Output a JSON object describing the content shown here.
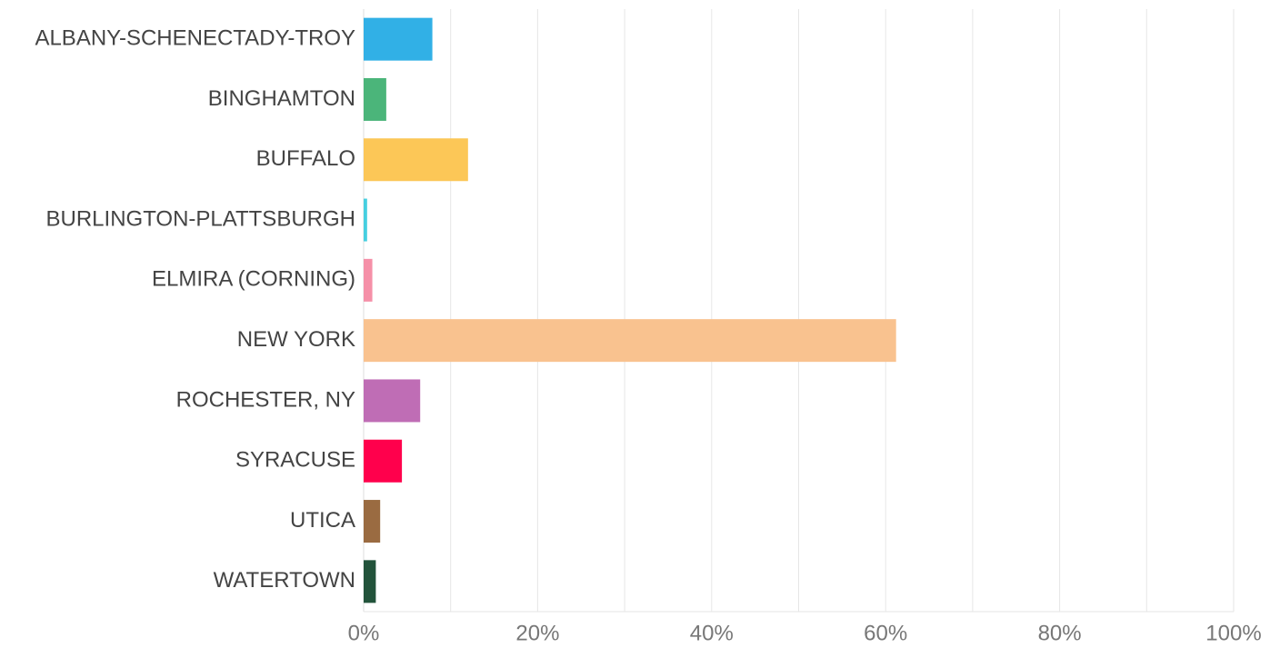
{
  "chart_data": {
    "type": "bar",
    "orientation": "horizontal",
    "categories": [
      "ALBANY-SCHENECTADY-TROY",
      "BINGHAMTON",
      "BUFFALO",
      "BURLINGTON-PLATTSBURGH",
      "ELMIRA (CORNING)",
      "NEW YORK",
      "ROCHESTER, NY",
      "SYRACUSE",
      "UTICA",
      "WATERTOWN"
    ],
    "values": [
      7.9,
      2.6,
      12.0,
      0.4,
      1.0,
      61.2,
      6.5,
      4.4,
      1.9,
      1.4
    ],
    "colors": [
      "#31b0e6",
      "#4bb57a",
      "#fcc757",
      "#46cfe0",
      "#f590a8",
      "#f9c28f",
      "#bf6db5",
      "#ff004c",
      "#9a6b41",
      "#22533b"
    ],
    "xlim": [
      0,
      100
    ],
    "xticks": [
      {
        "value": 0,
        "label": "0%"
      },
      {
        "value": 20,
        "label": "20%"
      },
      {
        "value": 40,
        "label": "40%"
      },
      {
        "value": 60,
        "label": "60%"
      },
      {
        "value": 80,
        "label": "80%"
      },
      {
        "value": 100,
        "label": "100%"
      }
    ],
    "minor_xticks": [
      10,
      30,
      50,
      70,
      90
    ],
    "grid": true
  }
}
